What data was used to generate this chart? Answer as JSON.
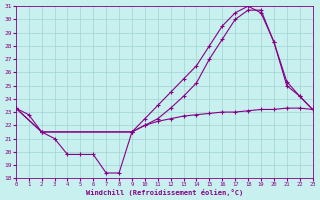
{
  "xlabel": "Windchill (Refroidissement éolien,°C)",
  "xlim": [
    0,
    23
  ],
  "ylim": [
    18,
    31
  ],
  "xticks": [
    0,
    1,
    2,
    3,
    4,
    5,
    6,
    7,
    8,
    9,
    10,
    11,
    12,
    13,
    14,
    15,
    16,
    17,
    18,
    19,
    20,
    21,
    22,
    23
  ],
  "yticks": [
    18,
    19,
    20,
    21,
    22,
    23,
    24,
    25,
    26,
    27,
    28,
    29,
    30,
    31
  ],
  "background_color": "#c8f0ee",
  "line_color": "#880088",
  "grid_color": "#a0d4d0",
  "line1_x": [
    0,
    1,
    2,
    3,
    4,
    5,
    6,
    7,
    8,
    9,
    10,
    11,
    12,
    13,
    14,
    15,
    16,
    17,
    18,
    19,
    20,
    21,
    22,
    23
  ],
  "line1_y": [
    23.3,
    22.8,
    21.5,
    21.0,
    19.8,
    19.8,
    19.8,
    18.4,
    18.4,
    21.5,
    22.0,
    22.3,
    22.5,
    22.7,
    22.8,
    22.9,
    23.0,
    23.0,
    23.1,
    23.2,
    23.2,
    23.3,
    23.3,
    23.2
  ],
  "line2_x": [
    0,
    2,
    9,
    10,
    11,
    12,
    13,
    14,
    15,
    16,
    17,
    18,
    19,
    20,
    21,
    22,
    23
  ],
  "line2_y": [
    23.3,
    21.5,
    21.5,
    22.5,
    23.5,
    24.5,
    25.5,
    26.5,
    28.0,
    29.5,
    30.5,
    31.0,
    30.5,
    28.3,
    25.0,
    24.2,
    23.2
  ],
  "line3_x": [
    0,
    2,
    9,
    10,
    11,
    12,
    13,
    14,
    15,
    16,
    17,
    18,
    19,
    20,
    21,
    22,
    23
  ],
  "line3_y": [
    23.3,
    21.5,
    21.5,
    22.0,
    22.5,
    23.3,
    24.2,
    25.2,
    27.0,
    28.5,
    30.0,
    30.7,
    30.7,
    28.3,
    25.3,
    24.2,
    23.2
  ]
}
